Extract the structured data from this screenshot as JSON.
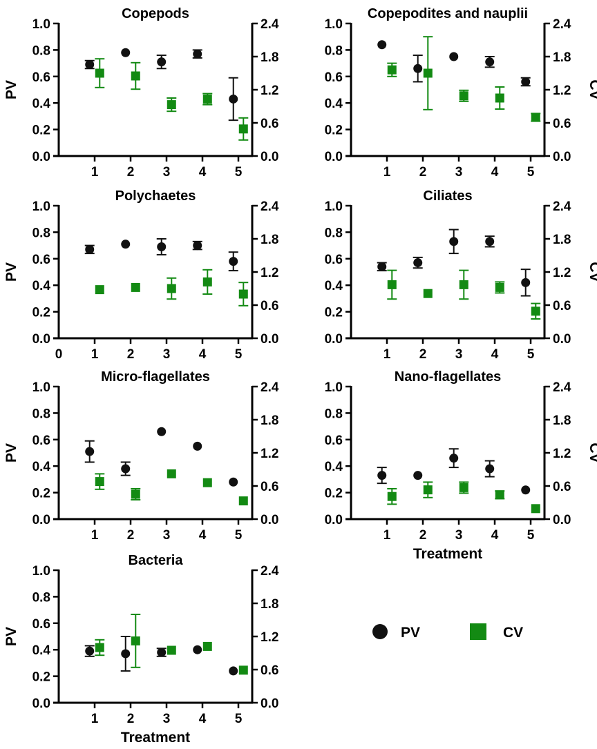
{
  "colors": {
    "pv": "#111111",
    "cv": "#138a13",
    "axis": "#000000"
  },
  "legend": {
    "pv_label": "PV",
    "cv_label": "CV"
  },
  "chart_data": [
    {
      "type": "scatter",
      "title": "Copepods",
      "xlabel": "",
      "ylabel_left": "PV",
      "ylabel_right": "",
      "categories": [
        "1",
        "2",
        "3",
        "4",
        "5"
      ],
      "xlim": [
        0,
        5.5
      ],
      "ylim_left": [
        0,
        1.0
      ],
      "ylim_right": [
        0,
        2.4
      ],
      "yticks_left": [
        "0.0",
        "0.2",
        "0.4",
        "0.6",
        "0.8",
        "1.0"
      ],
      "yticks_right": [
        "0.0",
        "0.6",
        "1.2",
        "1.8",
        "2.4"
      ],
      "series": [
        {
          "name": "PV",
          "axis": "left",
          "x": [
            1,
            2,
            3,
            4,
            5
          ],
          "values": [
            0.69,
            0.78,
            0.71,
            0.77,
            0.43
          ],
          "err": [
            0.03,
            0.0,
            0.05,
            0.03,
            0.16
          ]
        },
        {
          "name": "CV",
          "axis": "right",
          "x": [
            1,
            2,
            3,
            4,
            5
          ],
          "values": [
            1.5,
            1.45,
            0.93,
            1.03,
            0.49
          ],
          "err": [
            0.26,
            0.24,
            0.12,
            0.1,
            0.2
          ]
        }
      ]
    },
    {
      "type": "scatter",
      "title": "Copepodites and nauplii",
      "xlabel": "",
      "ylabel_left": "",
      "ylabel_right": "CV",
      "categories": [
        "1",
        "2",
        "3",
        "4",
        "5"
      ],
      "xlim": [
        0,
        5.5
      ],
      "ylim_left": [
        0,
        1.0
      ],
      "ylim_right": [
        0,
        2.4
      ],
      "yticks_left": [
        "0.0",
        "0.2",
        "0.4",
        "0.6",
        "0.8",
        "1.0"
      ],
      "yticks_right": [
        "0.0",
        "0.6",
        "1.2",
        "1.8",
        "2.4"
      ],
      "series": [
        {
          "name": "PV",
          "axis": "left",
          "x": [
            1,
            2,
            3,
            4,
            5
          ],
          "values": [
            0.84,
            0.66,
            0.75,
            0.71,
            0.56
          ],
          "err": [
            0.0,
            0.1,
            0.0,
            0.04,
            0.03
          ]
        },
        {
          "name": "CV",
          "axis": "right",
          "x": [
            1,
            2,
            3,
            4,
            5
          ],
          "values": [
            1.56,
            1.5,
            1.09,
            1.05,
            0.7
          ],
          "err": [
            0.12,
            0.66,
            0.1,
            0.2,
            0.07
          ]
        }
      ]
    },
    {
      "type": "scatter",
      "title": "Polychaetes",
      "xlabel": "",
      "ylabel_left": "PV",
      "ylabel_right": "",
      "categories": [
        "0",
        "1",
        "2",
        "3",
        "4",
        "5"
      ],
      "xlim": [
        0,
        5.5
      ],
      "ylim_left": [
        0,
        1.0
      ],
      "ylim_right": [
        0,
        2.4
      ],
      "yticks_left": [
        "0.0",
        "0.2",
        "0.4",
        "0.6",
        "0.8",
        "1.0"
      ],
      "yticks_right": [
        "0.0",
        "0.6",
        "1.2",
        "1.8",
        "2.4"
      ],
      "series": [
        {
          "name": "PV",
          "axis": "left",
          "x": [
            1,
            2,
            3,
            4,
            5
          ],
          "values": [
            0.67,
            0.71,
            0.69,
            0.7,
            0.58
          ],
          "err": [
            0.03,
            0.0,
            0.06,
            0.03,
            0.07
          ]
        },
        {
          "name": "CV",
          "axis": "right",
          "x": [
            1,
            2,
            3,
            4,
            5
          ],
          "values": [
            0.88,
            0.92,
            0.9,
            1.02,
            0.8
          ],
          "err": [
            0.0,
            0.0,
            0.19,
            0.22,
            0.21
          ]
        }
      ]
    },
    {
      "type": "scatter",
      "title": "Ciliates",
      "xlabel": "",
      "ylabel_left": "",
      "ylabel_right": "CV",
      "categories": [
        "1",
        "2",
        "3",
        "4",
        "5"
      ],
      "xlim": [
        0,
        5.5
      ],
      "ylim_left": [
        0,
        1.0
      ],
      "ylim_right": [
        0,
        2.4
      ],
      "yticks_left": [
        "0.0",
        "0.2",
        "0.4",
        "0.6",
        "0.8",
        "1.0"
      ],
      "yticks_right": [
        "0.0",
        "0.6",
        "1.2",
        "1.8",
        "2.4"
      ],
      "series": [
        {
          "name": "PV",
          "axis": "left",
          "x": [
            1,
            2,
            3,
            4,
            5
          ],
          "values": [
            0.54,
            0.57,
            0.73,
            0.73,
            0.42
          ],
          "err": [
            0.03,
            0.04,
            0.09,
            0.04,
            0.1
          ]
        },
        {
          "name": "CV",
          "axis": "right",
          "x": [
            1,
            2,
            3,
            4,
            5
          ],
          "values": [
            0.97,
            0.81,
            0.97,
            0.92,
            0.49
          ],
          "err": [
            0.26,
            0.0,
            0.26,
            0.1,
            0.14
          ]
        }
      ]
    },
    {
      "type": "scatter",
      "title": "Micro-flagellates",
      "xlabel": "",
      "ylabel_left": "PV",
      "ylabel_right": "",
      "categories": [
        "1",
        "2",
        "3",
        "4",
        "5"
      ],
      "xlim": [
        0,
        5.5
      ],
      "ylim_left": [
        0,
        1.0
      ],
      "ylim_right": [
        0,
        2.4
      ],
      "yticks_left": [
        "0.0",
        "0.2",
        "0.4",
        "0.6",
        "0.8",
        "1.0"
      ],
      "yticks_right": [
        "0.0",
        "0.6",
        "1.2",
        "1.8",
        "2.4"
      ],
      "series": [
        {
          "name": "PV",
          "axis": "left",
          "x": [
            1,
            2,
            3,
            4,
            5
          ],
          "values": [
            0.51,
            0.38,
            0.66,
            0.55,
            0.28
          ],
          "err": [
            0.08,
            0.05,
            0.0,
            0.0,
            0.0
          ]
        },
        {
          "name": "CV",
          "axis": "right",
          "x": [
            1,
            2,
            3,
            4,
            5
          ],
          "values": [
            0.68,
            0.45,
            0.82,
            0.66,
            0.33
          ],
          "err": [
            0.14,
            0.1,
            0.0,
            0.0,
            0.0
          ]
        }
      ]
    },
    {
      "type": "scatter",
      "title": "Nano-flagellates",
      "xlabel": "Treatment",
      "ylabel_left": "",
      "ylabel_right": "CV",
      "categories": [
        "1",
        "2",
        "3",
        "4",
        "5"
      ],
      "xlim": [
        0,
        5.5
      ],
      "ylim_left": [
        0,
        1.0
      ],
      "ylim_right": [
        0,
        2.4
      ],
      "yticks_left": [
        "0.0",
        "0.2",
        "0.4",
        "0.6",
        "0.8",
        "1.0"
      ],
      "yticks_right": [
        "0.0",
        "0.6",
        "1.2",
        "1.8",
        "2.4"
      ],
      "series": [
        {
          "name": "PV",
          "axis": "left",
          "x": [
            1,
            2,
            3,
            4,
            5
          ],
          "values": [
            0.33,
            0.33,
            0.46,
            0.38,
            0.22
          ],
          "err": [
            0.06,
            0.0,
            0.07,
            0.06,
            0.0
          ]
        },
        {
          "name": "CV",
          "axis": "right",
          "x": [
            1,
            2,
            3,
            4,
            5
          ],
          "values": [
            0.41,
            0.53,
            0.57,
            0.44,
            0.19
          ],
          "err": [
            0.14,
            0.14,
            0.1,
            0.07,
            0.0
          ]
        }
      ]
    },
    {
      "type": "scatter",
      "title": "Bacteria",
      "xlabel": "Treatment",
      "ylabel_left": "PV",
      "ylabel_right": "",
      "categories": [
        "1",
        "2",
        "3",
        "4",
        "5"
      ],
      "xlim": [
        0,
        5.5
      ],
      "ylim_left": [
        0,
        1.0
      ],
      "ylim_right": [
        0,
        2.4
      ],
      "yticks_left": [
        "0.0",
        "0.2",
        "0.4",
        "0.6",
        "0.8",
        "1.0"
      ],
      "yticks_right": [
        "0.0",
        "0.6",
        "1.2",
        "1.8",
        "2.4"
      ],
      "series": [
        {
          "name": "PV",
          "axis": "left",
          "x": [
            1,
            2,
            3,
            4,
            5
          ],
          "values": [
            0.39,
            0.37,
            0.38,
            0.4,
            0.24
          ],
          "err": [
            0.04,
            0.13,
            0.03,
            0.0,
            0.0
          ]
        },
        {
          "name": "CV",
          "axis": "right",
          "x": [
            1,
            2,
            3,
            4,
            5
          ],
          "values": [
            1.0,
            1.12,
            0.95,
            1.02,
            0.59
          ],
          "err": [
            0.14,
            0.48,
            0.0,
            0.0,
            0.0
          ]
        }
      ]
    }
  ]
}
